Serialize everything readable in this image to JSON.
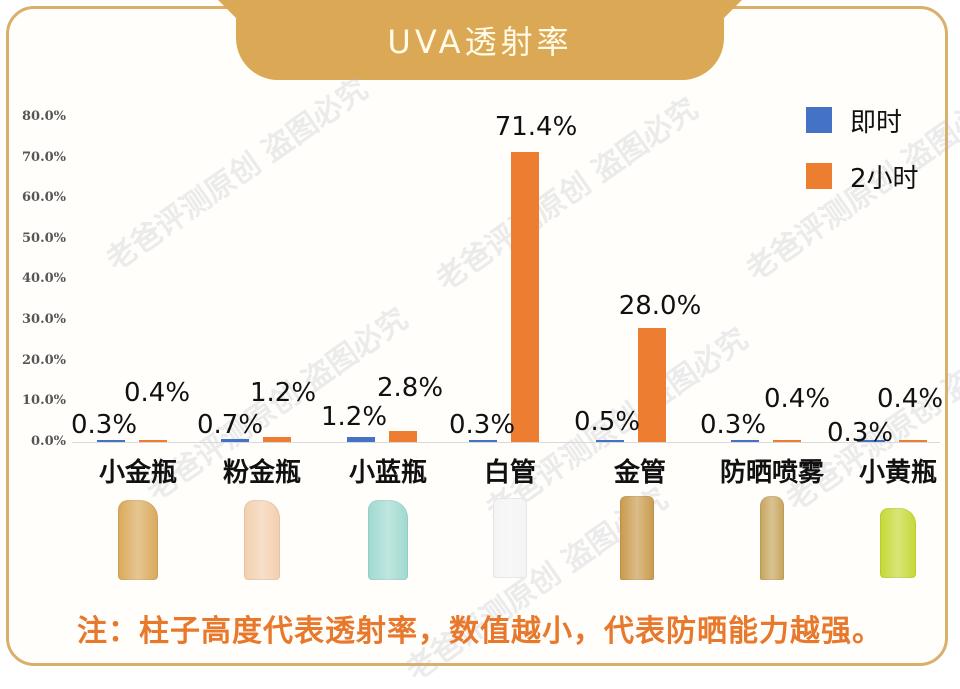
{
  "title": "UVA透射率",
  "legend": [
    {
      "label": "即时",
      "color": "#4472c4"
    },
    {
      "label": "2小时",
      "color": "#ed7d31"
    }
  ],
  "y_ticks": [
    "80.0%",
    "70.0%",
    "60.0%",
    "50.0%",
    "40.0%",
    "30.0%",
    "20.0%",
    "10.0%",
    "0.0%"
  ],
  "categories": [
    "小金瓶",
    "粉金瓶",
    "小蓝瓶",
    "白管",
    "金管",
    "防晒喷雾",
    "小黄瓶"
  ],
  "labels_immediate": [
    "0.3%",
    "0.7%",
    "1.2%",
    "0.3%",
    "0.5%",
    "0.3%",
    "0.3%"
  ],
  "labels_2h": [
    "0.4%",
    "1.2%",
    "2.8%",
    "71.4%",
    "28.0%",
    "0.4%",
    "0.4%"
  ],
  "products": [
    {
      "name": "小金瓶",
      "color": "#d9a95a"
    },
    {
      "name": "粉金瓶",
      "color": "#f3cfae"
    },
    {
      "name": "小蓝瓶",
      "color": "#9fd9cf"
    },
    {
      "name": "白管",
      "color": "#f4f4f4"
    },
    {
      "name": "金管",
      "color": "#c99a4c"
    },
    {
      "name": "防晒喷雾",
      "color": "#c6a45c"
    },
    {
      "name": "小黄瓶",
      "color": "#c6d834"
    }
  ],
  "note": "注：柱子高度代表透射率，数值越小，代表防晒能力越强。",
  "watermark": "老爸评测原创 盗图必究",
  "chart_data": {
    "type": "bar",
    "title": "UVA透射率",
    "categories": [
      "小金瓶",
      "粉金瓶",
      "小蓝瓶",
      "白管",
      "金管",
      "防晒喷雾",
      "小黄瓶"
    ],
    "series": [
      {
        "name": "即时",
        "color": "#4472c4",
        "values": [
          0.3,
          0.7,
          1.2,
          0.3,
          0.5,
          0.3,
          0.3
        ]
      },
      {
        "name": "2小时",
        "color": "#ed7d31",
        "values": [
          0.4,
          1.2,
          2.8,
          71.4,
          28.0,
          0.4,
          0.4
        ]
      }
    ],
    "xlabel": "",
    "ylabel": "",
    "ylim": [
      0,
      80
    ],
    "y_tick_labels": [
      "0.0%",
      "10.0%",
      "20.0%",
      "30.0%",
      "40.0%",
      "50.0%",
      "60.0%",
      "70.0%",
      "80.0%"
    ],
    "grid": false,
    "legend_position": "top-right",
    "annotation": "注：柱子高度代表透射率，数值越小，代表防晒能力越强。"
  }
}
